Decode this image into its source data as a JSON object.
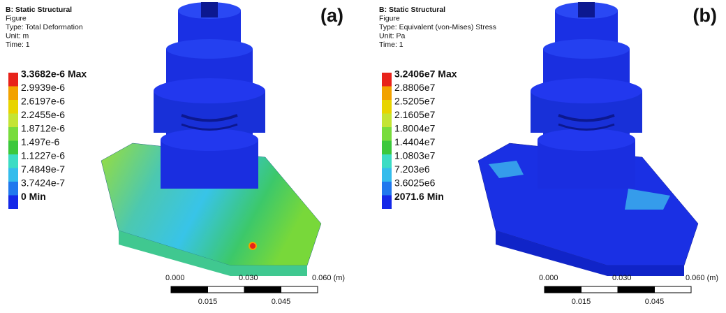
{
  "panels": [
    {
      "label": "(a)",
      "header": [
        "B: Static Structural",
        "Figure",
        "Type: Total Deformation",
        "Unit: m",
        "Time: 1"
      ],
      "legend": [
        "3.3682e-6 Max",
        "2.9939e-6",
        "2.6197e-6",
        "2.2455e-6",
        "1.8712e-6",
        "1.497e-6",
        "1.1227e-6",
        "7.4849e-7",
        "3.7424e-7",
        "0 Min"
      ],
      "scale_top": [
        "0.000",
        "0.030",
        "0.060 (m)"
      ],
      "scale_bottom": [
        "0.015",
        "0.045"
      ]
    },
    {
      "label": "(b)",
      "header": [
        "B: Static Structural",
        "Figure",
        "Type: Equivalent (von-Mises) Stress",
        "Unit: Pa",
        "Time: 1"
      ],
      "legend": [
        "3.2406e7 Max",
        "2.8806e7",
        "2.5205e7",
        "2.1605e7",
        "1.8004e7",
        "1.4404e7",
        "1.0803e7",
        "7.203e6",
        "3.6025e6",
        "2071.6 Min"
      ],
      "scale_top": [
        "0.000",
        "0.030",
        "0.060 (m)"
      ],
      "scale_bottom": [
        "0.015",
        "0.045"
      ]
    }
  ],
  "legend_colors": [
    "#e8231a",
    "#f2a200",
    "#e8d400",
    "#c4e434",
    "#78dc3c",
    "#3cc83c",
    "#3cdcc4",
    "#34bcec",
    "#2078ee",
    "#1428e8"
  ]
}
